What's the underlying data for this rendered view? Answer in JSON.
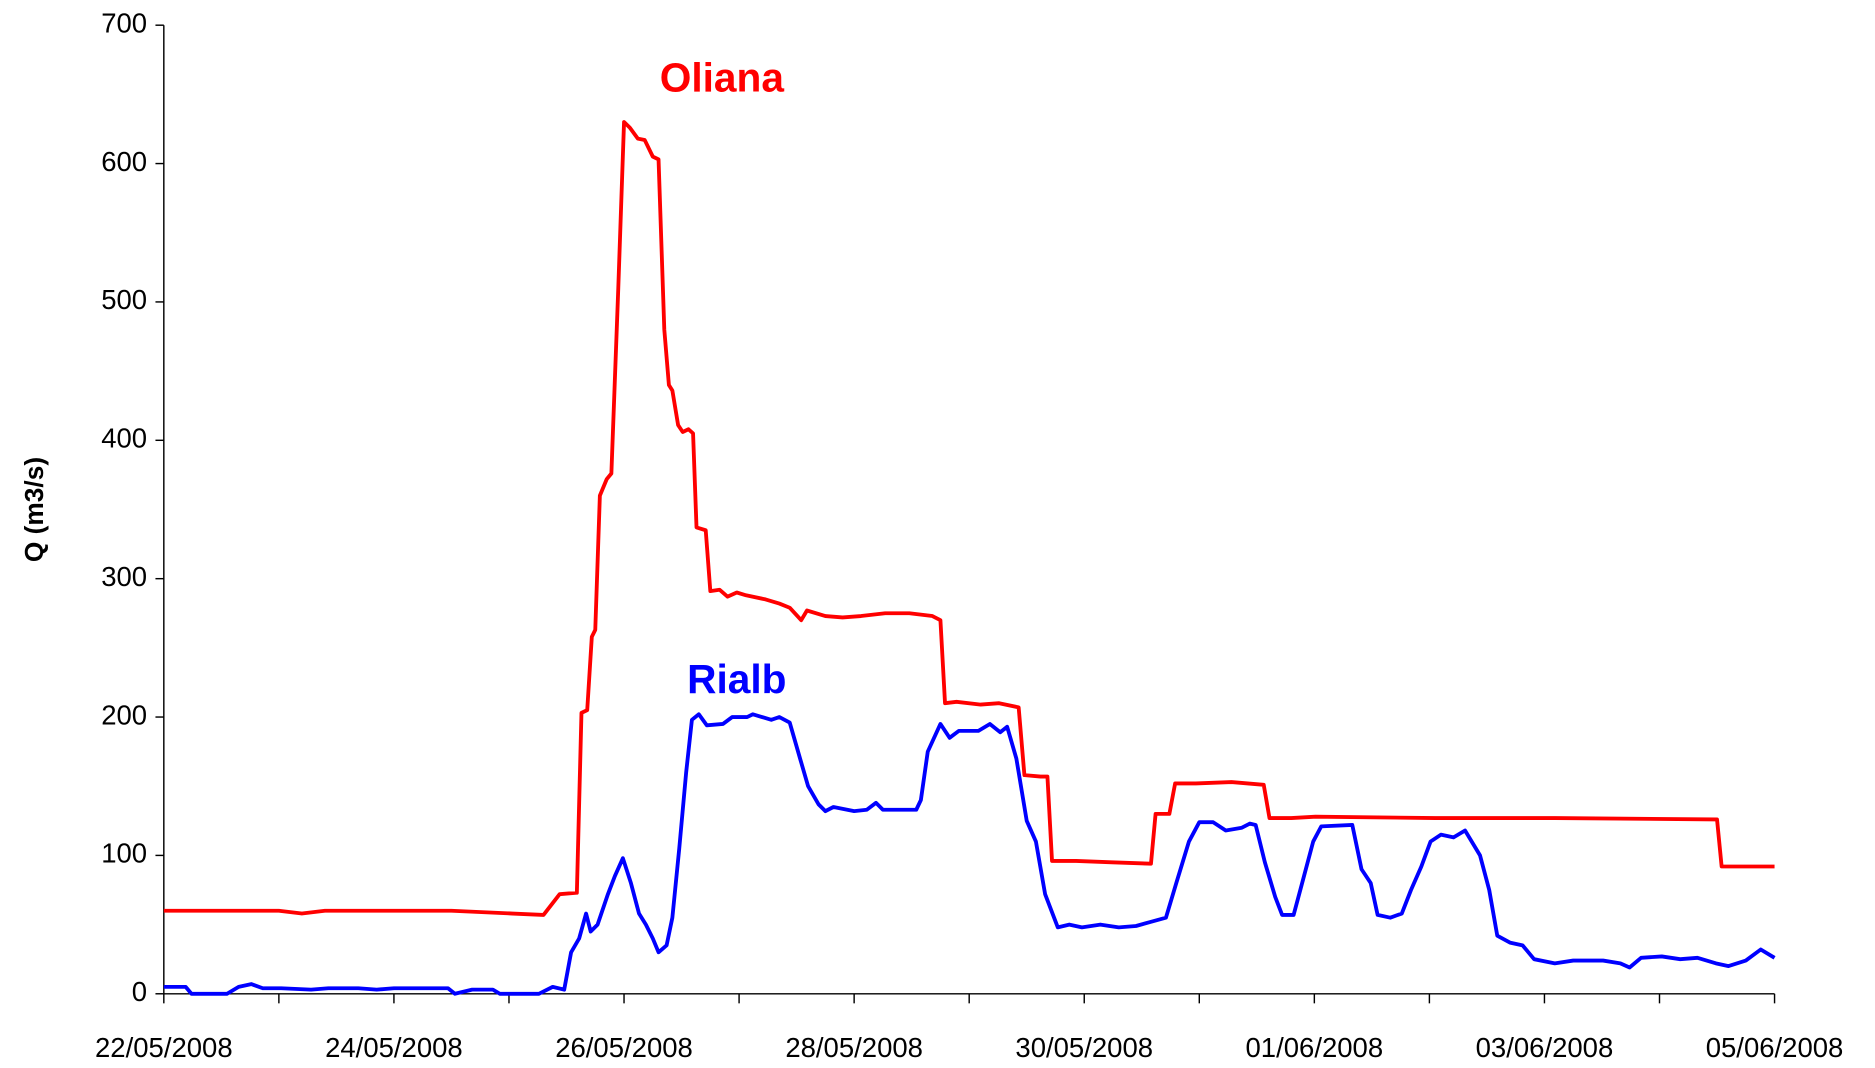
{
  "chart_data": {
    "type": "line",
    "y_label": "Q (m3/s)",
    "annotations": [
      {
        "text": "Oliana",
        "color": "#ff0000",
        "x": 4.85,
        "y": 660
      },
      {
        "text": "Rialb",
        "color": "#0000ff",
        "x": 4.98,
        "y": 225
      }
    ],
    "xlim": [
      0,
      14
    ],
    "xticks": [
      {
        "value": 0,
        "label": "22/05/2008"
      },
      {
        "value": 2,
        "label": "24/05/2008"
      },
      {
        "value": 4,
        "label": "26/05/2008"
      },
      {
        "value": 6,
        "label": "28/05/2008"
      },
      {
        "value": 8,
        "label": "30/05/2008"
      },
      {
        "value": 10,
        "label": "01/06/2008"
      },
      {
        "value": 12,
        "label": "03/06/2008"
      },
      {
        "value": 14,
        "label": "05/06/2008"
      }
    ],
    "xminorticks": [
      1,
      3,
      5,
      7,
      9,
      11,
      13
    ],
    "ylim": [
      0,
      700
    ],
    "yticks": [
      0,
      100,
      200,
      300,
      400,
      500,
      600,
      700
    ],
    "series": [
      {
        "name": "Oliana",
        "color": "#ff0000",
        "x": [
          0,
          1,
          1.2,
          1.4,
          2,
          2.5,
          3.03,
          3.3,
          3.44,
          3.59,
          3.63,
          3.68,
          3.72,
          3.75,
          3.79,
          3.85,
          3.89,
          3.95,
          4.0,
          4.05,
          4.12,
          4.18,
          4.25,
          4.3,
          4.35,
          4.39,
          4.42,
          4.47,
          4.51,
          4.56,
          4.6,
          4.63,
          4.71,
          4.75,
          4.83,
          4.9,
          4.98,
          5.06,
          5.23,
          5.35,
          5.44,
          5.54,
          5.59,
          5.75,
          5.9,
          6.06,
          6.27,
          6.48,
          6.68,
          6.75,
          6.79,
          6.89,
          7.1,
          7.26,
          7.43,
          7.48,
          7.62,
          7.68,
          7.72,
          7.93,
          8.24,
          8.58,
          8.62,
          8.74,
          8.79,
          8.97,
          9.28,
          9.56,
          9.61,
          9.8,
          10.01,
          11.05,
          12.09,
          13.5,
          13.54,
          14.0
        ],
        "values": [
          60,
          60,
          58,
          60,
          60,
          60,
          58,
          57,
          72,
          73,
          203,
          205,
          258,
          263,
          360,
          372,
          376,
          510,
          630,
          626,
          618,
          617,
          605,
          603,
          480,
          440,
          436,
          411,
          406,
          408,
          405,
          337,
          335,
          291,
          292,
          287,
          290,
          288,
          285,
          282,
          279,
          270,
          277,
          273,
          272,
          273,
          275,
          275,
          273,
          270,
          210,
          211,
          209,
          210,
          207,
          158,
          157,
          157,
          96,
          96,
          95,
          94,
          130,
          130,
          152,
          152,
          153,
          151,
          127,
          127,
          128,
          127,
          127,
          126,
          92,
          92
        ]
      },
      {
        "name": "Rialb",
        "color": "#0000ff",
        "x": [
          0,
          0.19,
          0.24,
          0.55,
          0.65,
          0.76,
          0.86,
          1.02,
          1.28,
          1.43,
          1.69,
          1.85,
          2.0,
          2.47,
          2.53,
          2.68,
          2.86,
          2.92,
          3.26,
          3.38,
          3.48,
          3.54,
          3.61,
          3.67,
          3.71,
          3.77,
          3.86,
          3.92,
          3.99,
          4.06,
          4.13,
          4.19,
          4.25,
          4.3,
          4.37,
          4.42,
          4.48,
          4.54,
          4.59,
          4.65,
          4.72,
          4.86,
          4.94,
          5.07,
          5.12,
          5.28,
          5.35,
          5.44,
          5.53,
          5.6,
          5.69,
          5.75,
          5.82,
          6.0,
          6.11,
          6.19,
          6.25,
          6.54,
          6.58,
          6.64,
          6.75,
          6.83,
          6.91,
          7.08,
          7.18,
          7.27,
          7.33,
          7.41,
          7.5,
          7.58,
          7.66,
          7.77,
          7.87,
          7.98,
          8.14,
          8.3,
          8.45,
          8.58,
          8.71,
          8.8,
          8.91,
          9.0,
          9.12,
          9.23,
          9.37,
          9.44,
          9.49,
          9.57,
          9.66,
          9.72,
          9.82,
          9.91,
          9.99,
          10.06,
          10.33,
          10.41,
          10.49,
          10.55,
          10.66,
          10.76,
          10.84,
          10.93,
          11.01,
          11.1,
          11.21,
          11.31,
          11.44,
          11.52,
          11.59,
          11.7,
          11.81,
          11.91,
          12.09,
          12.25,
          12.51,
          12.66,
          12.74,
          12.84,
          13.02,
          13.18,
          13.33,
          13.49,
          13.6,
          13.75,
          13.88,
          14.0
        ],
        "values": [
          5,
          5,
          0,
          0,
          5,
          7,
          4,
          4,
          3,
          4,
          4,
          3,
          4,
          4,
          0,
          3,
          3,
          0,
          0,
          5,
          3,
          30,
          40,
          58,
          45,
          50,
          72,
          85,
          98,
          80,
          58,
          50,
          40,
          30,
          35,
          55,
          105,
          160,
          198,
          202,
          194,
          195,
          200,
          200,
          202,
          198,
          200,
          196,
          170,
          150,
          137,
          132,
          135,
          132,
          133,
          138,
          133,
          133,
          140,
          175,
          195,
          185,
          190,
          190,
          195,
          189,
          193,
          170,
          125,
          110,
          72,
          48,
          50,
          48,
          50,
          48,
          49,
          52,
          55,
          80,
          110,
          124,
          124,
          118,
          120,
          123,
          122,
          95,
          70,
          57,
          57,
          85,
          110,
          121,
          122,
          90,
          80,
          57,
          55,
          58,
          75,
          92,
          110,
          115,
          113,
          118,
          100,
          75,
          42,
          37,
          35,
          25,
          22,
          24,
          24,
          22,
          19,
          26,
          27,
          25,
          26,
          22,
          20,
          24,
          32,
          26
        ]
      }
    ]
  }
}
